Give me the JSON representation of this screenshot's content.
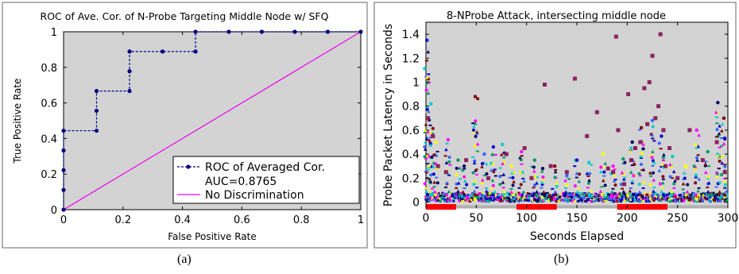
{
  "captions": {
    "a": "(a)",
    "b": "(b)"
  },
  "chart_data": [
    {
      "type": "line",
      "title": "ROC of Ave. Cor. of N-Probe Targeting Middle Node w/ SFQ",
      "xlabel": "False Positive Rate",
      "ylabel": "True Positive Rate",
      "xlim": [
        0,
        1
      ],
      "ylim": [
        0,
        1
      ],
      "xticks": [
        "0",
        "0.2",
        "0.4",
        "0.6",
        "0.8",
        "1"
      ],
      "yticks": [
        "0",
        "0.2",
        "0.4",
        "0.6",
        "0.8",
        "1"
      ],
      "grid": false,
      "background": "#d3d3d3",
      "legend_position": "bottom-right",
      "legend": [
        "ROC of Averaged Cor.",
        "AUC=0.8765",
        "No Discrimination"
      ],
      "series": [
        {
          "name": "ROC of Averaged Cor.",
          "color": "#00007f",
          "style": "dashed-with-markers",
          "x": [
            0,
            0,
            0,
            0,
            0,
            0.111,
            0.111,
            0.111,
            0.222,
            0.222,
            0.222,
            0.333,
            0.444,
            0.444,
            0.556,
            0.667,
            0.778,
            0.889,
            1
          ],
          "y": [
            0,
            0.111,
            0.222,
            0.333,
            0.444,
            0.444,
            0.556,
            0.667,
            0.667,
            0.778,
            0.889,
            0.889,
            0.889,
            1,
            1,
            1,
            1,
            1,
            1
          ]
        },
        {
          "name": "No Discrimination",
          "color": "#ee00ee",
          "style": "solid",
          "x": [
            0,
            1
          ],
          "y": [
            0,
            1
          ]
        }
      ]
    },
    {
      "type": "scatter",
      "title": "8-NProbe Attack, intersecting middle node",
      "xlabel": "Seconds Elapsed",
      "ylabel": "Probe Packet Latency in Seconds",
      "xlim": [
        0,
        300
      ],
      "ylim": [
        -0.05,
        1.5
      ],
      "xticks": [
        "0",
        "50",
        "100",
        "150",
        "200",
        "250",
        "300"
      ],
      "yticks": [
        "0",
        "0.2",
        "0.4",
        "0.6",
        "0.8",
        "1",
        "1.2",
        "1.4"
      ],
      "grid": false,
      "background": "#d3d3d3",
      "attack_intervals": [
        [
          0,
          30
        ],
        [
          90,
          130
        ],
        [
          190,
          240
        ]
      ],
      "attack_color": "#ff0000",
      "probe_colors": [
        "#0000cc",
        "#00cccc",
        "#ffff00",
        "#ff00ff",
        "#009966",
        "#000066",
        "#800000",
        "#3366ff"
      ],
      "target_color": "#8b2260",
      "target_points": {
        "x": [
          2,
          7,
          12,
          20,
          40,
          62,
          80,
          98,
          105,
          118,
          124,
          140,
          148,
          160,
          170,
          181,
          186,
          189,
          191,
          197,
          201,
          204,
          208,
          213,
          217,
          220,
          222,
          225,
          228,
          231,
          233,
          236,
          238,
          242,
          250,
          262,
          275,
          289,
          297
        ],
        "y": [
          0.7,
          0.55,
          0.3,
          0.25,
          0.35,
          0.2,
          0.4,
          0.45,
          0.2,
          0.98,
          0.3,
          0.25,
          1.03,
          0.55,
          0.75,
          0.28,
          0.25,
          1.38,
          0.6,
          0.15,
          0.9,
          0.35,
          0.45,
          0.5,
          0.95,
          0.65,
          1.0,
          1.22,
          0.7,
          0.8,
          1.4,
          0.6,
          0.3,
          0.45,
          0.2,
          0.6,
          0.35,
          0.5,
          0.25
        ]
      },
      "probe_spikes": [
        {
          "x": 1,
          "h": 1.35
        },
        {
          "x": 5,
          "h": 0.82
        },
        {
          "x": 10,
          "h": 0.5
        },
        {
          "x": 22,
          "h": 0.52
        },
        {
          "x": 32,
          "h": 0.35
        },
        {
          "x": 38,
          "h": 0.3
        },
        {
          "x": 49,
          "h": 0.88
        },
        {
          "x": 58,
          "h": 0.4
        },
        {
          "x": 67,
          "h": 0.46
        },
        {
          "x": 76,
          "h": 0.48
        },
        {
          "x": 85,
          "h": 0.3
        },
        {
          "x": 95,
          "h": 0.42
        },
        {
          "x": 108,
          "h": 0.35
        },
        {
          "x": 116,
          "h": 0.28
        },
        {
          "x": 128,
          "h": 0.3
        },
        {
          "x": 140,
          "h": 0.22
        },
        {
          "x": 150,
          "h": 0.35
        },
        {
          "x": 162,
          "h": 0.33
        },
        {
          "x": 176,
          "h": 0.4
        },
        {
          "x": 186,
          "h": 0.3
        },
        {
          "x": 196,
          "h": 0.36
        },
        {
          "x": 205,
          "h": 0.5
        },
        {
          "x": 214,
          "h": 0.62
        },
        {
          "x": 225,
          "h": 0.68
        },
        {
          "x": 234,
          "h": 0.55
        },
        {
          "x": 245,
          "h": 0.38
        },
        {
          "x": 258,
          "h": 0.3
        },
        {
          "x": 269,
          "h": 0.6
        },
        {
          "x": 280,
          "h": 0.42
        },
        {
          "x": 290,
          "h": 0.83
        },
        {
          "x": 296,
          "h": 0.7
        }
      ]
    }
  ]
}
